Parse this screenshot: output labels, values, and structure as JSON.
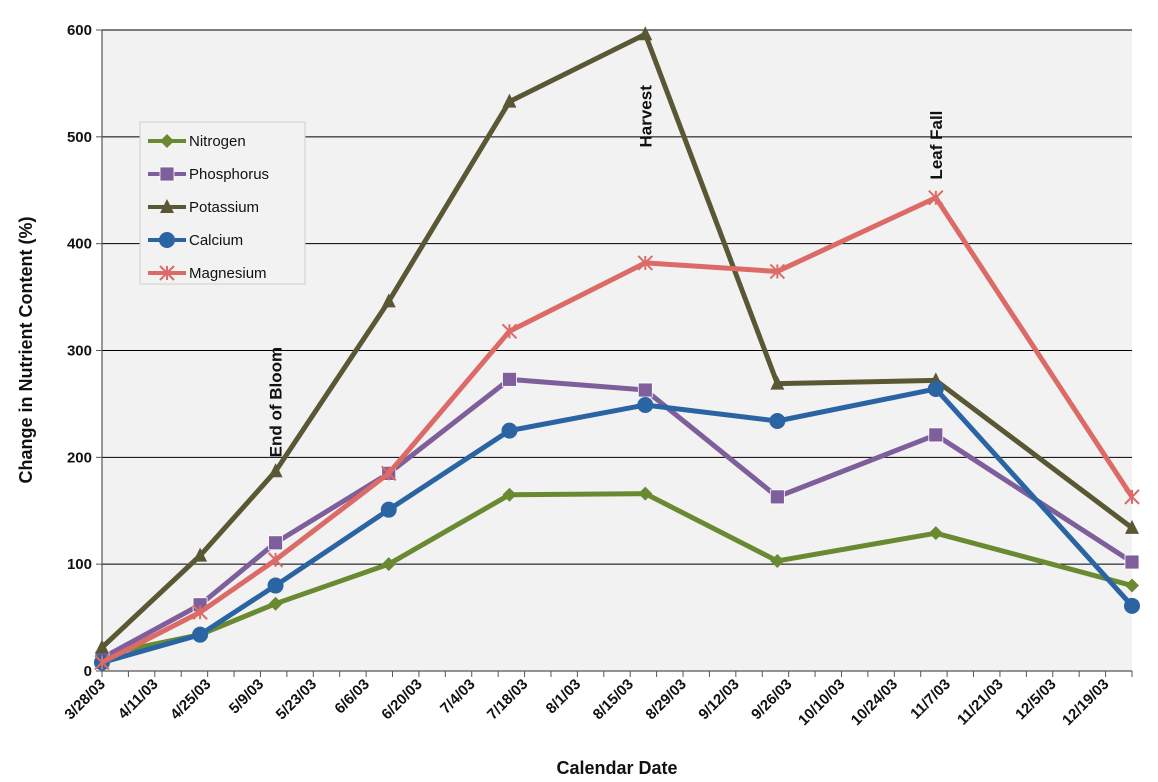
{
  "chart_data": {
    "type": "line",
    "title": "",
    "xlabel": "Calendar Date",
    "ylabel": "Change in Nutrient Content (%)",
    "ylim": [
      0,
      600
    ],
    "yticks": [
      "0",
      "100",
      "200",
      "300",
      "400",
      "500",
      "600"
    ],
    "xlim": [
      "3/28/03",
      "12/26/03"
    ],
    "xticks": [
      "3/28/03",
      "4/11/03",
      "4/25/03",
      "5/9/03",
      "5/23/03",
      "6/6/03",
      "6/20/03",
      "7/4/03",
      "7/18/03",
      "8/1/03",
      "8/15/03",
      "8/29/03",
      "9/12/03",
      "9/26/03",
      "10/10/03",
      "10/24/03",
      "11/7/03",
      "11/21/03",
      "12/5/03",
      "12/19/03"
    ],
    "grid": "horizontal",
    "legend_position": "top-left",
    "x": [
      "3/28/03",
      "4/23/03",
      "5/13/03",
      "6/12/03",
      "7/14/03",
      "8/19/03",
      "9/23/03",
      "11/4/03",
      "12/26/03"
    ],
    "series": [
      {
        "name": "Nitrogen",
        "color": "#6a8a32",
        "marker": "diamond",
        "values": [
          15,
          34,
          63,
          100,
          165,
          166,
          103,
          129,
          80
        ]
      },
      {
        "name": "Phosphorus",
        "color": "#7e5f9b",
        "marker": "square",
        "values": [
          12,
          62,
          120,
          185,
          273,
          263,
          163,
          221,
          102
        ]
      },
      {
        "name": "Potassium",
        "color": "#5a5735",
        "marker": "triangle",
        "values": [
          22,
          108,
          187,
          346,
          533,
          596,
          269,
          272,
          134
        ]
      },
      {
        "name": "Calcium",
        "color": "#2a64a3",
        "marker": "circle",
        "values": [
          8,
          34,
          80,
          151,
          225,
          249,
          234,
          264,
          61
        ]
      },
      {
        "name": "Magnesium",
        "color": "#dc6a66",
        "marker": "star",
        "values": [
          8,
          55,
          104,
          185,
          318,
          382,
          374,
          443,
          163
        ]
      }
    ],
    "annotations": [
      {
        "text": "End of Bloom",
        "x": "5/13/03",
        "y": 200
      },
      {
        "text": "Harvest",
        "x": "8/19/03",
        "y": 490
      },
      {
        "text": "Leaf Fall",
        "x": "11/4/03",
        "y": 460
      }
    ]
  }
}
